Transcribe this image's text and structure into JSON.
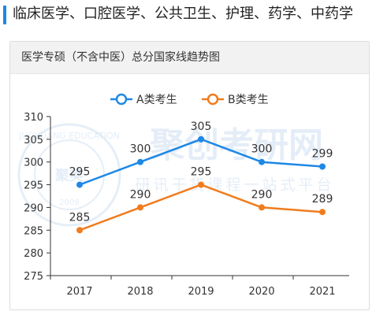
{
  "header": {
    "title": "临床医学、口腔医学、公共卫生、护理、药学、中药学"
  },
  "card": {
    "title": "医学专硕（不含中医）总分国家线趋势图"
  },
  "watermark": {
    "brand": "聚创考研网",
    "slogan": "研讯干货课程一站式平台",
    "seal_top": "JUCHUANG EDUCATION",
    "seal_center": "聚英",
    "seal_year": "2008"
  },
  "colors": {
    "accent": "#1e88e5",
    "series_a": "#1e88e5",
    "series_b": "#f07c1e",
    "axis": "#333333",
    "watermark": "#c5d9ee"
  },
  "chart_data": {
    "type": "line",
    "title": "医学专硕（不含中医）总分国家线趋势图",
    "x": [
      "2017",
      "2018",
      "2019",
      "2020",
      "2021"
    ],
    "series": [
      {
        "name": "A类考生",
        "values": [
          295,
          300,
          305,
          300,
          299
        ],
        "color": "#1e88e5"
      },
      {
        "name": "B类考生",
        "values": [
          285,
          290,
          295,
          290,
          289
        ],
        "color": "#f07c1e"
      }
    ],
    "ylim": [
      275,
      310
    ],
    "yticks": [
      275,
      280,
      285,
      290,
      295,
      300,
      305,
      310
    ],
    "grid": false,
    "legend": "top-center",
    "data_labels": true
  }
}
